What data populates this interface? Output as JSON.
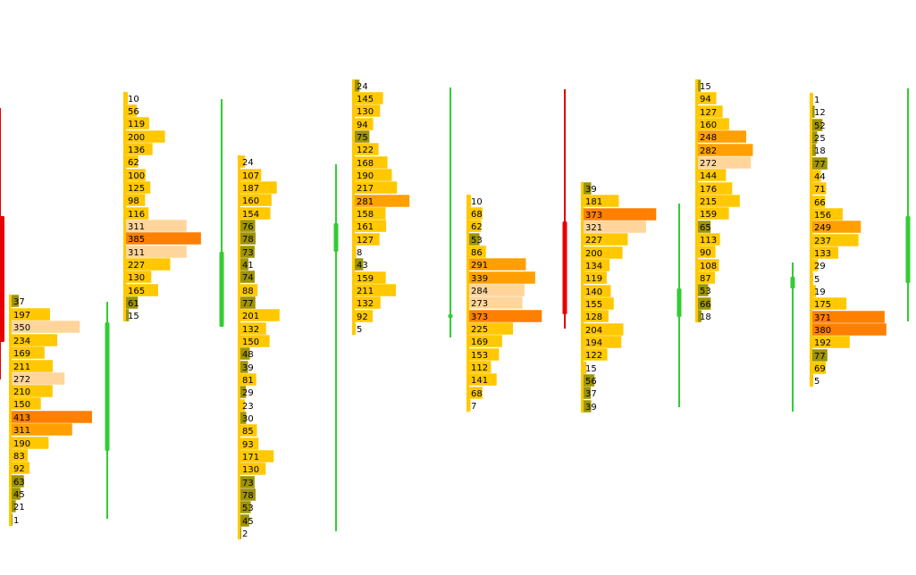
{
  "chart_data": {
    "type": "bar",
    "grid": false,
    "legend": "none",
    "colors": {
      "low": "#9e9400",
      "normal": "#ffc800",
      "high": "#ffa000",
      "value_area": "#ffd59c",
      "poc": "#ff7f00",
      "candle_up": "#33cc33",
      "candle_down": "#e60000",
      "text": "#000000"
    },
    "profiles": [
      {
        "candle": {
          "direction": "up",
          "body_top": 361,
          "body_bottom": 505,
          "wick_top": 338,
          "wick_bottom": 581
        },
        "levels": [
          {
            "price": 337,
            "volume": 37,
            "class": "low"
          },
          {
            "price": 352,
            "volume": 197,
            "class": "normal"
          },
          {
            "price": 366,
            "volume": 350,
            "class": "value_area"
          },
          {
            "price": 381,
            "volume": 234,
            "class": "normal"
          },
          {
            "price": 395,
            "volume": 169,
            "class": "normal"
          },
          {
            "price": 410,
            "volume": 211,
            "class": "normal"
          },
          {
            "price": 424,
            "volume": 272,
            "class": "value_area"
          },
          {
            "price": 438,
            "volume": 210,
            "class": "normal"
          },
          {
            "price": 452,
            "volume": 150,
            "class": "normal"
          },
          {
            "price": 467,
            "volume": 413,
            "class": "poc"
          },
          {
            "price": 481,
            "volume": 311,
            "class": "high"
          },
          {
            "price": 496,
            "volume": 190,
            "class": "normal"
          },
          {
            "price": 510,
            "volume": 83,
            "class": "normal"
          },
          {
            "price": 524,
            "volume": 92,
            "class": "normal"
          },
          {
            "price": 539,
            "volume": 63,
            "class": "low"
          },
          {
            "price": 553,
            "volume": 45,
            "class": "low"
          },
          {
            "price": 567,
            "volume": 21,
            "class": "low"
          },
          {
            "price": 582,
            "volume": 1,
            "class": "low"
          }
        ]
      },
      {
        "candle": {
          "direction": "up",
          "body_top": 282,
          "body_bottom": 366,
          "wick_top": 111,
          "wick_bottom": 366
        },
        "levels": [
          {
            "price": 110,
            "volume": 10,
            "class": "normal"
          },
          {
            "price": 124,
            "volume": 56,
            "class": "normal"
          },
          {
            "price": 138,
            "volume": 119,
            "class": "normal"
          },
          {
            "price": 153,
            "volume": 200,
            "class": "normal"
          },
          {
            "price": 167,
            "volume": 136,
            "class": "normal"
          },
          {
            "price": 181,
            "volume": 62,
            "class": "normal"
          },
          {
            "price": 196,
            "volume": 100,
            "class": "normal"
          },
          {
            "price": 210,
            "volume": 125,
            "class": "normal"
          },
          {
            "price": 224,
            "volume": 98,
            "class": "normal"
          },
          {
            "price": 239,
            "volume": 116,
            "class": "normal"
          },
          {
            "price": 253,
            "volume": 311,
            "class": "value_area"
          },
          {
            "price": 267,
            "volume": 385,
            "class": "poc"
          },
          {
            "price": 282,
            "volume": 311,
            "class": "value_area"
          },
          {
            "price": 296,
            "volume": 227,
            "class": "normal"
          },
          {
            "price": 310,
            "volume": 130,
            "class": "normal"
          },
          {
            "price": 325,
            "volume": 165,
            "class": "normal"
          },
          {
            "price": 339,
            "volume": 61,
            "class": "low"
          },
          {
            "price": 353,
            "volume": 15,
            "class": "low"
          }
        ]
      },
      {
        "candle": {
          "direction": "up",
          "body_top": 250,
          "body_bottom": 282,
          "wick_top": 184,
          "wick_bottom": 595
        },
        "levels": [
          {
            "price": 181,
            "volume": 24,
            "class": "normal"
          },
          {
            "price": 196,
            "volume": 107,
            "class": "normal"
          },
          {
            "price": 210,
            "volume": 187,
            "class": "normal"
          },
          {
            "price": 224,
            "volume": 160,
            "class": "normal"
          },
          {
            "price": 239,
            "volume": 154,
            "class": "normal"
          },
          {
            "price": 253,
            "volume": 76,
            "class": "low"
          },
          {
            "price": 267,
            "volume": 78,
            "class": "low"
          },
          {
            "price": 282,
            "volume": 73,
            "class": "low"
          },
          {
            "price": 296,
            "volume": 41,
            "class": "low"
          },
          {
            "price": 310,
            "volume": 74,
            "class": "low"
          },
          {
            "price": 325,
            "volume": 88,
            "class": "normal"
          },
          {
            "price": 339,
            "volume": 77,
            "class": "low"
          },
          {
            "price": 353,
            "volume": 201,
            "class": "normal"
          },
          {
            "price": 368,
            "volume": 132,
            "class": "normal"
          },
          {
            "price": 382,
            "volume": 150,
            "class": "normal"
          },
          {
            "price": 396,
            "volume": 48,
            "class": "low"
          },
          {
            "price": 411,
            "volume": 39,
            "class": "low"
          },
          {
            "price": 425,
            "volume": 81,
            "class": "normal"
          },
          {
            "price": 439,
            "volume": 29,
            "class": "low"
          },
          {
            "price": 454,
            "volume": 23,
            "class": "normal"
          },
          {
            "price": 468,
            "volume": 30,
            "class": "low"
          },
          {
            "price": 482,
            "volume": 85,
            "class": "normal"
          },
          {
            "price": 497,
            "volume": 93,
            "class": "normal"
          },
          {
            "price": 511,
            "volume": 171,
            "class": "normal"
          },
          {
            "price": 525,
            "volume": 130,
            "class": "normal"
          },
          {
            "price": 540,
            "volume": 73,
            "class": "low"
          },
          {
            "price": 554,
            "volume": 78,
            "class": "low"
          },
          {
            "price": 568,
            "volume": 53,
            "class": "low"
          },
          {
            "price": 583,
            "volume": 45,
            "class": "low"
          },
          {
            "price": 597,
            "volume": 2,
            "class": "low"
          }
        ]
      },
      {
        "candle": {
          "direction": "up",
          "body_top": 356,
          "body_bottom": 352,
          "wick_top": 98,
          "wick_bottom": 378
        },
        "levels": [
          {
            "price": 96,
            "volume": 24,
            "class": "low"
          },
          {
            "price": 110,
            "volume": 145,
            "class": "normal"
          },
          {
            "price": 124,
            "volume": 130,
            "class": "normal"
          },
          {
            "price": 139,
            "volume": 94,
            "class": "normal"
          },
          {
            "price": 153,
            "volume": 75,
            "class": "low"
          },
          {
            "price": 167,
            "volume": 122,
            "class": "normal"
          },
          {
            "price": 182,
            "volume": 168,
            "class": "normal"
          },
          {
            "price": 196,
            "volume": 190,
            "class": "normal"
          },
          {
            "price": 210,
            "volume": 217,
            "class": "normal"
          },
          {
            "price": 225,
            "volume": 281,
            "class": "high"
          },
          {
            "price": 239,
            "volume": 158,
            "class": "normal"
          },
          {
            "price": 253,
            "volume": 161,
            "class": "normal"
          },
          {
            "price": 268,
            "volume": 127,
            "class": "normal"
          },
          {
            "price": 282,
            "volume": 8,
            "class": "normal"
          },
          {
            "price": 296,
            "volume": 43,
            "class": "low"
          },
          {
            "price": 311,
            "volume": 159,
            "class": "normal"
          },
          {
            "price": 325,
            "volume": 211,
            "class": "normal"
          },
          {
            "price": 339,
            "volume": 132,
            "class": "normal"
          },
          {
            "price": 354,
            "volume": 92,
            "class": "normal"
          },
          {
            "price": 368,
            "volume": 5,
            "class": "normal"
          }
        ]
      },
      {
        "candle": {
          "direction": "down",
          "body_top": 248,
          "body_bottom": 352,
          "wick_top": 100,
          "wick_bottom": 368
        },
        "levels": [
          {
            "price": 225,
            "volume": 10,
            "class": "normal"
          },
          {
            "price": 239,
            "volume": 68,
            "class": "normal"
          },
          {
            "price": 253,
            "volume": 62,
            "class": "normal"
          },
          {
            "price": 268,
            "volume": 53,
            "class": "low"
          },
          {
            "price": 282,
            "volume": 86,
            "class": "normal"
          },
          {
            "price": 296,
            "volume": 291,
            "class": "high"
          },
          {
            "price": 311,
            "volume": 339,
            "class": "high"
          },
          {
            "price": 325,
            "volume": 284,
            "class": "value_area"
          },
          {
            "price": 339,
            "volume": 273,
            "class": "value_area"
          },
          {
            "price": 354,
            "volume": 373,
            "class": "poc"
          },
          {
            "price": 368,
            "volume": 225,
            "class": "normal"
          },
          {
            "price": 382,
            "volume": 169,
            "class": "normal"
          },
          {
            "price": 397,
            "volume": 153,
            "class": "normal"
          },
          {
            "price": 411,
            "volume": 112,
            "class": "normal"
          },
          {
            "price": 425,
            "volume": 141,
            "class": "normal"
          },
          {
            "price": 440,
            "volume": 68,
            "class": "normal"
          },
          {
            "price": 454,
            "volume": 7,
            "class": "normal"
          }
        ]
      },
      {
        "candle": {
          "direction": "up",
          "body_top": 323,
          "body_bottom": 355,
          "wick_top": 228,
          "wick_bottom": 456
        },
        "levels": [
          {
            "price": 211,
            "volume": 39,
            "class": "low"
          },
          {
            "price": 225,
            "volume": 181,
            "class": "normal"
          },
          {
            "price": 240,
            "volume": 373,
            "class": "poc"
          },
          {
            "price": 254,
            "volume": 321,
            "class": "value_area"
          },
          {
            "price": 268,
            "volume": 227,
            "class": "normal"
          },
          {
            "price": 283,
            "volume": 200,
            "class": "normal"
          },
          {
            "price": 297,
            "volume": 134,
            "class": "normal"
          },
          {
            "price": 311,
            "volume": 119,
            "class": "normal"
          },
          {
            "price": 326,
            "volume": 140,
            "class": "normal"
          },
          {
            "price": 340,
            "volume": 155,
            "class": "normal"
          },
          {
            "price": 354,
            "volume": 128,
            "class": "normal"
          },
          {
            "price": 369,
            "volume": 204,
            "class": "normal"
          },
          {
            "price": 383,
            "volume": 194,
            "class": "normal"
          },
          {
            "price": 397,
            "volume": 122,
            "class": "normal"
          },
          {
            "price": 412,
            "volume": 15,
            "class": "normal"
          },
          {
            "price": 426,
            "volume": 56,
            "class": "low"
          },
          {
            "price": 440,
            "volume": 37,
            "class": "low"
          },
          {
            "price": 455,
            "volume": 39,
            "class": "low"
          }
        ]
      },
      {
        "candle": {
          "direction": "up",
          "body_top": 310,
          "body_bottom": 323,
          "wick_top": 294,
          "wick_bottom": 461
        },
        "levels": [
          {
            "price": 96,
            "volume": 15,
            "class": "low"
          },
          {
            "price": 110,
            "volume": 94,
            "class": "normal"
          },
          {
            "price": 125,
            "volume": 127,
            "class": "normal"
          },
          {
            "price": 139,
            "volume": 160,
            "class": "normal"
          },
          {
            "price": 153,
            "volume": 248,
            "class": "high"
          },
          {
            "price": 168,
            "volume": 282,
            "class": "high"
          },
          {
            "price": 182,
            "volume": 272,
            "class": "value_area"
          },
          {
            "price": 196,
            "volume": 144,
            "class": "normal"
          },
          {
            "price": 211,
            "volume": 176,
            "class": "normal"
          },
          {
            "price": 225,
            "volume": 215,
            "class": "normal"
          },
          {
            "price": 239,
            "volume": 159,
            "class": "normal"
          },
          {
            "price": 254,
            "volume": 65,
            "class": "low"
          },
          {
            "price": 268,
            "volume": 113,
            "class": "normal"
          },
          {
            "price": 282,
            "volume": 90,
            "class": "normal"
          },
          {
            "price": 297,
            "volume": 108,
            "class": "normal"
          },
          {
            "price": 311,
            "volume": 87,
            "class": "normal"
          },
          {
            "price": 325,
            "volume": 53,
            "class": "low"
          },
          {
            "price": 340,
            "volume": 66,
            "class": "low"
          },
          {
            "price": 354,
            "volume": 18,
            "class": "low"
          }
        ]
      },
      {
        "candle": {
          "direction": "up",
          "body_top": 242,
          "body_bottom": 317,
          "wick_top": 99,
          "wick_bottom": 360
        },
        "levels": [
          {
            "price": 111,
            "volume": 1,
            "class": "normal"
          },
          {
            "price": 125,
            "volume": 12,
            "class": "low"
          },
          {
            "price": 140,
            "volume": 52,
            "class": "low"
          },
          {
            "price": 154,
            "volume": 25,
            "class": "low"
          },
          {
            "price": 168,
            "volume": 18,
            "class": "low"
          },
          {
            "price": 183,
            "volume": 77,
            "class": "low"
          },
          {
            "price": 197,
            "volume": 44,
            "class": "normal"
          },
          {
            "price": 211,
            "volume": 71,
            "class": "normal"
          },
          {
            "price": 226,
            "volume": 66,
            "class": "normal"
          },
          {
            "price": 240,
            "volume": 156,
            "class": "normal"
          },
          {
            "price": 254,
            "volume": 249,
            "class": "high"
          },
          {
            "price": 269,
            "volume": 237,
            "class": "normal"
          },
          {
            "price": 283,
            "volume": 133,
            "class": "normal"
          },
          {
            "price": 297,
            "volume": 29,
            "class": "normal"
          },
          {
            "price": 312,
            "volume": 5,
            "class": "normal"
          },
          {
            "price": 326,
            "volume": 19,
            "class": "normal"
          },
          {
            "price": 340,
            "volume": 175,
            "class": "normal"
          },
          {
            "price": 355,
            "volume": 371,
            "class": "poc"
          },
          {
            "price": 369,
            "volume": 380,
            "class": "poc"
          },
          {
            "price": 383,
            "volume": 192,
            "class": "normal"
          },
          {
            "price": 398,
            "volume": 77,
            "class": "low"
          },
          {
            "price": 412,
            "volume": 69,
            "class": "normal"
          },
          {
            "price": 426,
            "volume": 5,
            "class": "normal"
          }
        ]
      },
      {
        "candle": {
          "direction": "down",
          "body_top": 242,
          "body_bottom": 383,
          "wick_top": 121,
          "wick_bottom": 425
        },
        "levels": []
      }
    ]
  }
}
